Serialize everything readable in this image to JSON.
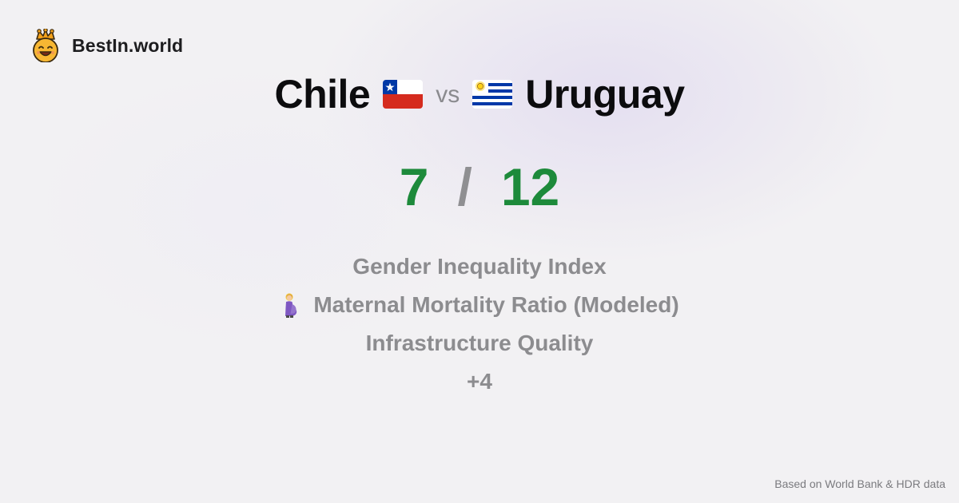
{
  "brand": {
    "name": "BestIn.world",
    "logo_icon": "crown-smiley-icon"
  },
  "comparison": {
    "country_a": "Chile",
    "country_b": "Uruguay",
    "vs_label": "vs",
    "flag_a_icon": "chile-flag-icon",
    "flag_b_icon": "uruguay-flag-icon"
  },
  "score": {
    "a": "7",
    "separator": "/",
    "b": "12"
  },
  "metrics": [
    {
      "label": "Gender Inequality Index"
    },
    {
      "label": "Maternal Mortality Ratio (Modeled)",
      "icon": "pregnant-woman-icon"
    },
    {
      "label": "Infrastructure Quality"
    }
  ],
  "more_label": "+4",
  "footer": {
    "source": "Based on World Bank & HDR data"
  },
  "colors": {
    "score": "#1d8a3b",
    "muted": "#8c8c8f"
  }
}
